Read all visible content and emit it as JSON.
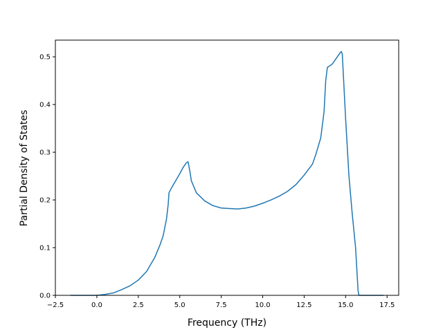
{
  "chart_data": {
    "type": "line",
    "title": "",
    "xlabel": "Frequency (THz)",
    "ylabel": "Partial Density of States",
    "xlim": [
      -2.5,
      18.2
    ],
    "ylim": [
      0.0,
      0.535
    ],
    "xticks": [
      -2.5,
      0.0,
      2.5,
      5.0,
      7.5,
      10.0,
      12.5,
      15.0,
      17.5
    ],
    "xtick_labels": [
      "−2.5",
      "0.0",
      "2.5",
      "5.0",
      "7.5",
      "10.0",
      "12.5",
      "15.0",
      "17.5"
    ],
    "yticks": [
      0.0,
      0.1,
      0.2,
      0.3,
      0.4,
      0.5
    ],
    "ytick_labels": [
      "0.0",
      "0.1",
      "0.2",
      "0.3",
      "0.4",
      "0.5"
    ],
    "grid": false,
    "legend": "none",
    "series": [
      {
        "color": "#1f77b4",
        "x": [
          -1.6,
          -1.0,
          -0.5,
          0.0,
          0.5,
          1.0,
          1.5,
          2.0,
          2.5,
          3.0,
          3.5,
          3.8,
          4.0,
          4.2,
          4.3,
          4.35,
          4.5,
          4.7,
          5.0,
          5.2,
          5.4,
          5.5,
          5.6,
          5.7,
          6.0,
          6.5,
          7.0,
          7.5,
          8.0,
          8.5,
          9.0,
          9.5,
          10.0,
          10.5,
          11.0,
          11.5,
          12.0,
          12.5,
          13.0,
          13.2,
          13.5,
          13.7,
          13.8,
          13.9,
          14.0,
          14.2,
          14.5,
          14.7,
          14.75,
          14.8,
          15.0,
          15.2,
          15.4,
          15.6,
          15.75,
          15.8,
          16.0,
          17.3
        ],
        "y": [
          0.0,
          0.0,
          0.0,
          0.0,
          0.002,
          0.005,
          0.012,
          0.02,
          0.032,
          0.05,
          0.08,
          0.105,
          0.125,
          0.16,
          0.19,
          0.215,
          0.225,
          0.237,
          0.255,
          0.268,
          0.278,
          0.28,
          0.262,
          0.24,
          0.215,
          0.198,
          0.188,
          0.183,
          0.182,
          0.181,
          0.183,
          0.187,
          0.193,
          0.2,
          0.208,
          0.218,
          0.232,
          0.252,
          0.275,
          0.295,
          0.33,
          0.385,
          0.45,
          0.478,
          0.48,
          0.485,
          0.5,
          0.51,
          0.511,
          0.505,
          0.37,
          0.25,
          0.17,
          0.1,
          0.01,
          0.0,
          0.0,
          0.0
        ]
      }
    ]
  }
}
